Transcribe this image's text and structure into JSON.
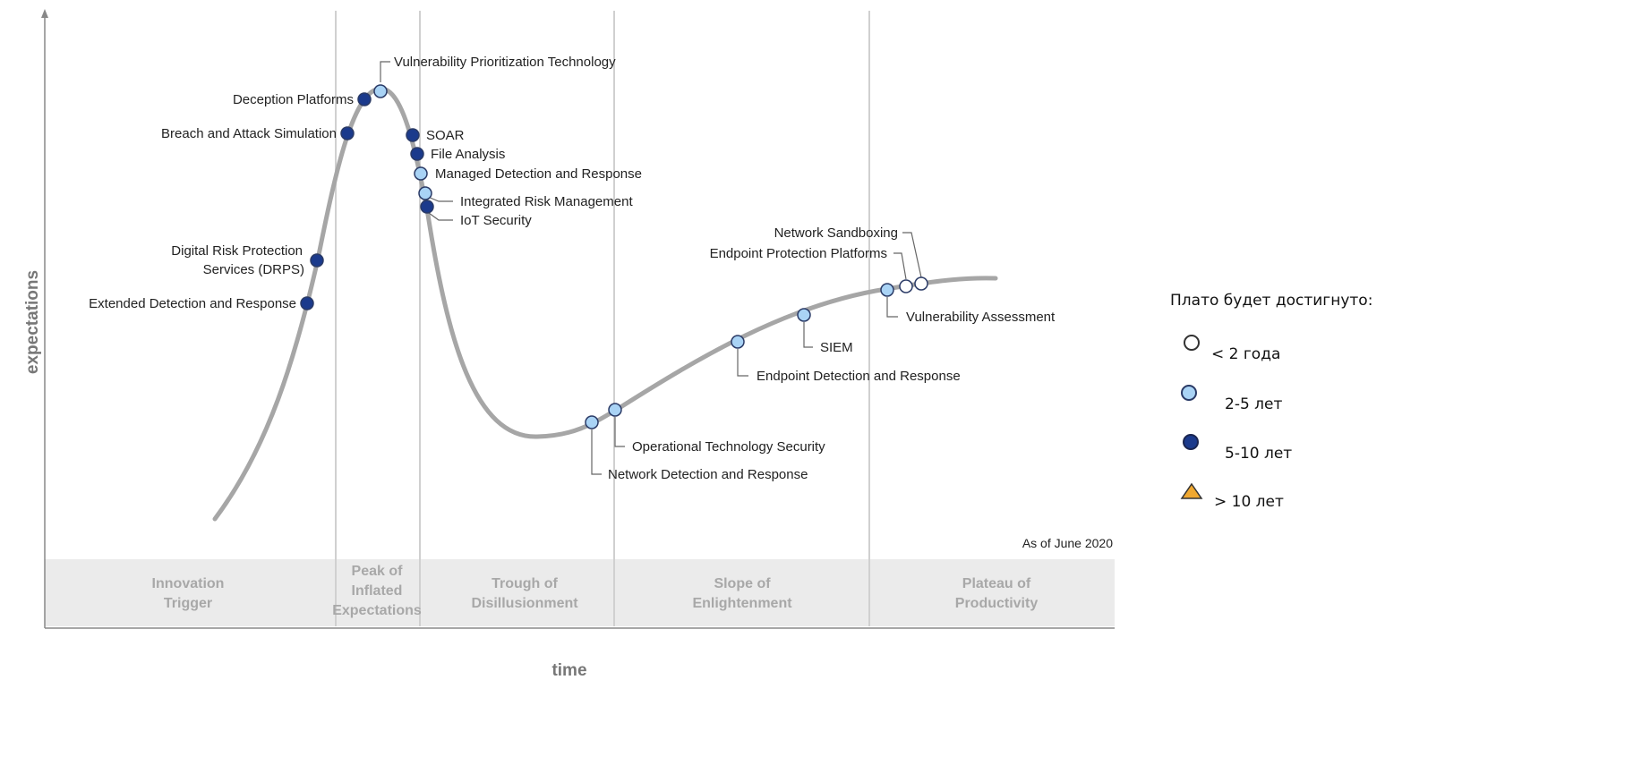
{
  "axes": {
    "y_label": "expectations",
    "x_label": "time"
  },
  "as_of": "As of June 2020",
  "phases": [
    {
      "lines": [
        "Innovation",
        "Trigger"
      ]
    },
    {
      "lines": [
        "Peak of",
        "Inflated",
        "Expectations"
      ]
    },
    {
      "lines": [
        "Trough of",
        "Disillusionment"
      ]
    },
    {
      "lines": [
        "Slope of",
        "Enlightenment"
      ]
    },
    {
      "lines": [
        "Plateau of",
        "Productivity"
      ]
    }
  ],
  "technologies": [
    {
      "name": "Extended Detection and Response",
      "plateau": "5-10 лет"
    },
    {
      "name_lines": [
        "Digital Risk Protection",
        "Services (DRPS)"
      ],
      "plateau": "5-10 лет"
    },
    {
      "name": "Breach and Attack Simulation",
      "plateau": "5-10 лет"
    },
    {
      "name": "Deception Platforms",
      "plateau": "5-10 лет"
    },
    {
      "name": "Vulnerability Prioritization Technology",
      "plateau": "2-5 лет"
    },
    {
      "name": "SOAR",
      "plateau": "5-10 лет"
    },
    {
      "name": "File Analysis",
      "plateau": "5-10 лет"
    },
    {
      "name": "Managed Detection and Response",
      "plateau": "2-5 лет"
    },
    {
      "name": "Integrated Risk Management",
      "plateau": "2-5 лет"
    },
    {
      "name": "IoT Security",
      "plateau": "5-10 лет"
    },
    {
      "name": "Network Detection and Response",
      "plateau": "2-5 лет"
    },
    {
      "name": "Operational Technology Security",
      "plateau": "2-5 лет"
    },
    {
      "name": "Endpoint Detection and Response",
      "plateau": "2-5 лет"
    },
    {
      "name": "SIEM",
      "plateau": "2-5 лет"
    },
    {
      "name": "Vulnerability Assessment",
      "plateau": "2-5 лет"
    },
    {
      "name": "Endpoint Protection Platforms",
      "plateau": "< 2 года"
    },
    {
      "name": "Network Sandboxing",
      "plateau": "< 2 года"
    }
  ],
  "legend": {
    "title": "Плато будет достигнуто:",
    "items": [
      {
        "label": "< 2 года",
        "color": "#ffffff",
        "shape": "circle"
      },
      {
        "label": "2-5 лет",
        "color": "#a9d3f5",
        "shape": "circle"
      },
      {
        "label": "5-10 лет",
        "color": "#1b3a8c",
        "shape": "circle"
      },
      {
        "label": "> 10 лет",
        "color": "#f0a830",
        "shape": "triangle"
      }
    ]
  },
  "colors": {
    "dark": "#1b3a8c",
    "light": "#a9d3f5",
    "white": "#ffffff",
    "curve": "#a6a6a6",
    "band": "#ebebeb"
  }
}
